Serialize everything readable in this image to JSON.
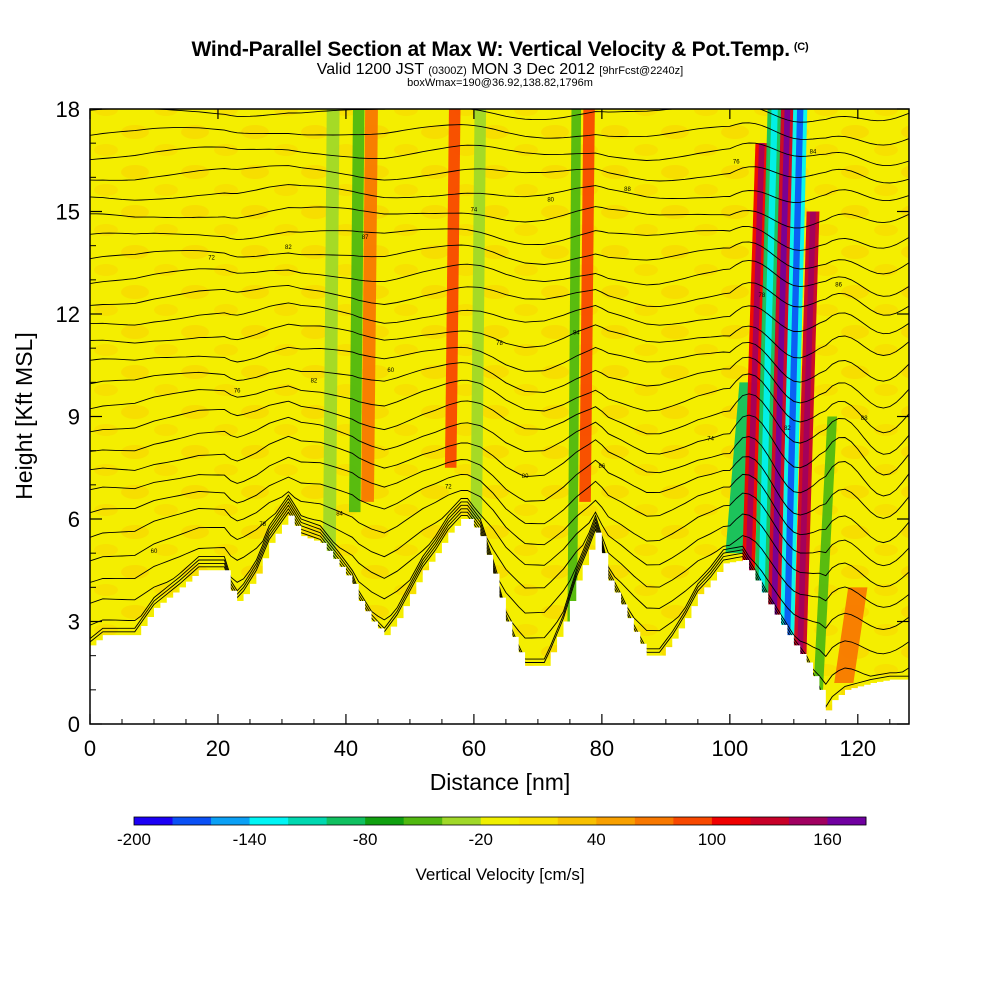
{
  "header": {
    "title": "Wind-Parallel Section at Max W: Vertical Velocity & Pot.Temp.",
    "copyright_mark": "(C)",
    "valid_prefix": "Valid 1200 JST",
    "valid_utc": "(0300Z)",
    "valid_date": "MON 3 Dec 2012",
    "forecast": "[9hrFcst@2240z]",
    "boxw": "boxWmax=190@36.92,138.82,1796m"
  },
  "chart_data": {
    "type": "heatmap",
    "xlabel": "Distance [nm]",
    "ylabel": "Height [Kft MSL]",
    "xlim": [
      0,
      128
    ],
    "ylim": [
      0,
      18
    ],
    "x_ticks": [
      0,
      20,
      40,
      60,
      80,
      100,
      120
    ],
    "y_ticks": [
      0,
      3,
      6,
      9,
      12,
      15,
      18
    ],
    "terrain_kft": [
      [
        0,
        2.3
      ],
      [
        2,
        2.6
      ],
      [
        7,
        2.6
      ],
      [
        10,
        3.4
      ],
      [
        14,
        4.0
      ],
      [
        17,
        4.5
      ],
      [
        21,
        4.5
      ],
      [
        22,
        3.9
      ],
      [
        23,
        3.6
      ],
      [
        24,
        3.8
      ],
      [
        26,
        4.4
      ],
      [
        28,
        5.3
      ],
      [
        31,
        6.1
      ],
      [
        33,
        5.5
      ],
      [
        36,
        5.3
      ],
      [
        39,
        4.6
      ],
      [
        41,
        4.1
      ],
      [
        42,
        3.6
      ],
      [
        44,
        3.0
      ],
      [
        46,
        2.6
      ],
      [
        48,
        3.1
      ],
      [
        50,
        3.8
      ],
      [
        52,
        4.5
      ],
      [
        54,
        5.0
      ],
      [
        56,
        5.6
      ],
      [
        58,
        6.0
      ],
      [
        59,
        6.0
      ],
      [
        61,
        5.5
      ],
      [
        63,
        4.4
      ],
      [
        65,
        3.0
      ],
      [
        67,
        2.1
      ],
      [
        68,
        1.7
      ],
      [
        71,
        1.7
      ],
      [
        72,
        2.1
      ],
      [
        74,
        3.0
      ],
      [
        76,
        4.2
      ],
      [
        78,
        5.1
      ],
      [
        79,
        5.6
      ],
      [
        80,
        5.0
      ],
      [
        81,
        4.2
      ],
      [
        83,
        3.5
      ],
      [
        85,
        2.7
      ],
      [
        87,
        2.0
      ],
      [
        89,
        2.0
      ],
      [
        91,
        2.5
      ],
      [
        93,
        3.1
      ],
      [
        95,
        3.8
      ],
      [
        97,
        4.2
      ],
      [
        99,
        4.7
      ],
      [
        102,
        4.8
      ],
      [
        104,
        4.2
      ],
      [
        106,
        3.5
      ],
      [
        108,
        2.9
      ],
      [
        110,
        2.3
      ],
      [
        112,
        1.8
      ],
      [
        114,
        1.0
      ],
      [
        115,
        0.4
      ],
      [
        116,
        0.7
      ],
      [
        118,
        1.0
      ],
      [
        120,
        1.1
      ],
      [
        122,
        1.2
      ],
      [
        125,
        1.3
      ],
      [
        128,
        1.3
      ]
    ],
    "colorbar": {
      "label": "Vertical Velocity [cm/s]",
      "tick_labels": [
        "-200",
        "-140",
        "-80",
        "-20",
        "40",
        "100",
        "160"
      ],
      "tick_values": [
        -200,
        -140,
        -80,
        -20,
        40,
        100,
        160
      ],
      "levels": [
        -200,
        -180,
        -160,
        -140,
        -120,
        -100,
        -80,
        -60,
        -40,
        -20,
        0,
        20,
        40,
        60,
        80,
        100,
        120,
        140,
        160,
        180
      ],
      "colors": [
        "#1c00f5",
        "#0a50f5",
        "#0aa0f5",
        "#00f5f5",
        "#00d8b0",
        "#10c060",
        "#10a010",
        "#50b810",
        "#a0d828",
        "#f0f000",
        "#f8e000",
        "#f8c000",
        "#f8a000",
        "#f87800",
        "#f84800",
        "#f00000",
        "#c80028",
        "#a00060",
        "#7000a0"
      ]
    },
    "velocity_features": [
      {
        "x": 38,
        "width": 2.0,
        "y_from": 4.2,
        "y_to": 18,
        "value": -40
      },
      {
        "x": 42,
        "width": 1.8,
        "y_from": 6.2,
        "y_to": 18,
        "value": -50
      },
      {
        "x": 44,
        "width": 2.0,
        "y_from": 6.5,
        "y_to": 18,
        "value": 70
      },
      {
        "x": 57,
        "width": 1.8,
        "y_from": 7.5,
        "y_to": 18,
        "value": 80
      },
      {
        "x": 61,
        "width": 1.8,
        "y_from": 6.0,
        "y_to": 18,
        "value": -40
      },
      {
        "x": 76,
        "width": 1.5,
        "y_from": 3.0,
        "y_to": 18,
        "value": -50
      },
      {
        "x": 78,
        "width": 1.8,
        "y_from": 6.5,
        "y_to": 18,
        "value": 80
      },
      {
        "x": 103,
        "width": 3.0,
        "y_from": 5.0,
        "y_to": 10.0,
        "value": -90
      },
      {
        "x": 105,
        "width": 2.0,
        "y_from": 4.0,
        "y_to": 17.0,
        "value": 110
      },
      {
        "x": 107,
        "width": 2.2,
        "y_from": 3.0,
        "y_to": 18,
        "value": -100
      },
      {
        "x": 109,
        "width": 2.0,
        "y_from": 2.5,
        "y_to": 18,
        "value": 130
      },
      {
        "x": 111,
        "width": 2.2,
        "y_from": 1.5,
        "y_to": 18,
        "value": -140
      },
      {
        "x": 113,
        "width": 2.0,
        "y_from": 1.0,
        "y_to": 15,
        "value": 120
      },
      {
        "x": 116,
        "width": 1.5,
        "y_from": 1.0,
        "y_to": 9.0,
        "value": -60
      },
      {
        "x": 120,
        "width": 3.0,
        "y_from": 1.2,
        "y_to": 4.0,
        "value": 70
      }
    ],
    "isentrope_labels": [
      "60",
      "60",
      "88",
      "88",
      "87",
      "86",
      "86",
      "84",
      "84",
      "84",
      "82",
      "80",
      "82",
      "82",
      "80",
      "78",
      "78",
      "78",
      "76",
      "76",
      "74",
      "74",
      "72",
      "72"
    ]
  }
}
